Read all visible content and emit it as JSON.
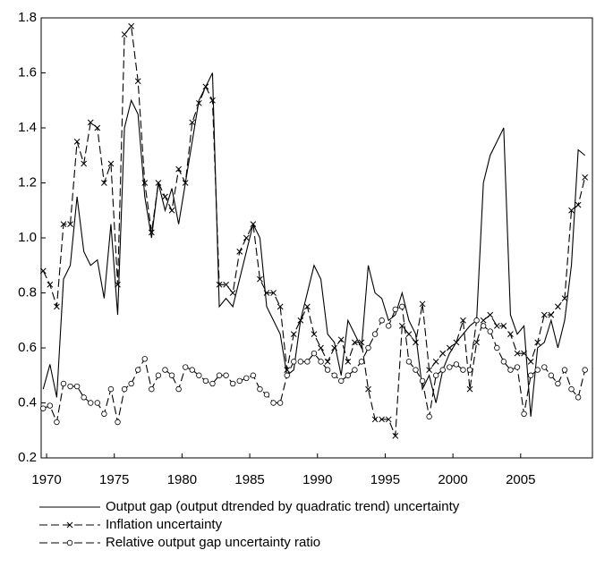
{
  "chart_data": {
    "type": "line",
    "x": [
      1969.75,
      1970.25,
      1970.75,
      1971.25,
      1971.75,
      1972.25,
      1972.75,
      1973.25,
      1973.75,
      1974.25,
      1974.75,
      1975.25,
      1975.75,
      1976.25,
      1976.75,
      1977.25,
      1977.75,
      1978.25,
      1978.75,
      1979.25,
      1979.75,
      1980.25,
      1980.75,
      1981.25,
      1981.75,
      1982.25,
      1982.75,
      1983.25,
      1983.75,
      1984.25,
      1984.75,
      1985.25,
      1985.75,
      1986.25,
      1986.75,
      1987.25,
      1987.75,
      1988.25,
      1988.75,
      1989.25,
      1989.75,
      1990.25,
      1990.75,
      1991.25,
      1991.75,
      1992.25,
      1992.75,
      1993.25,
      1993.75,
      1994.25,
      1994.75,
      1995.25,
      1995.75,
      1996.25,
      1996.75,
      1997.25,
      1997.75,
      1998.25,
      1998.75,
      1999.25,
      1999.75,
      2000.25,
      2000.75,
      2001.25,
      2001.75,
      2002.25,
      2002.75,
      2003.25,
      2003.75,
      2004.25,
      2004.75,
      2005.25,
      2005.75,
      2006.25,
      2006.75,
      2007.25,
      2007.75,
      2008.25,
      2008.75,
      2009.25,
      2009.75
    ],
    "series": [
      {
        "name": "Output gap (output dtrended by quadratic trend) uncertainty",
        "color": "#000000",
        "dash": false,
        "marker": "none",
        "values": [
          0.45,
          0.54,
          0.42,
          0.85,
          0.9,
          1.15,
          0.95,
          0.9,
          0.92,
          0.78,
          1.05,
          0.72,
          1.4,
          1.5,
          1.45,
          1.15,
          1.0,
          1.2,
          1.1,
          1.18,
          1.05,
          1.2,
          1.35,
          1.5,
          1.55,
          1.6,
          0.75,
          0.78,
          0.75,
          0.85,
          0.95,
          1.05,
          1.0,
          0.75,
          0.7,
          0.65,
          0.5,
          0.52,
          0.7,
          0.8,
          0.9,
          0.85,
          0.65,
          0.62,
          0.5,
          0.7,
          0.65,
          0.6,
          0.9,
          0.8,
          0.78,
          0.7,
          0.72,
          0.8,
          0.7,
          0.65,
          0.45,
          0.5,
          0.4,
          0.52,
          0.58,
          0.62,
          0.65,
          0.68,
          0.7,
          1.2,
          1.3,
          1.35,
          1.4,
          0.72,
          0.65,
          0.68,
          0.35,
          0.6,
          0.62,
          0.7,
          0.6,
          0.7,
          0.9,
          1.32,
          1.3
        ]
      },
      {
        "name": "Inflation uncertainty",
        "color": "#000000",
        "dash": true,
        "marker": "x",
        "values": [
          0.88,
          0.83,
          0.75,
          1.05,
          1.05,
          1.35,
          1.27,
          1.42,
          1.4,
          1.2,
          1.27,
          0.83,
          1.74,
          1.77,
          1.57,
          1.2,
          1.02,
          1.2,
          1.15,
          1.1,
          1.25,
          1.2,
          1.42,
          1.49,
          1.55,
          1.5,
          0.83,
          0.83,
          0.8,
          0.95,
          1.0,
          1.05,
          0.85,
          0.8,
          0.8,
          0.75,
          0.52,
          0.65,
          0.7,
          0.75,
          0.65,
          0.6,
          0.55,
          0.6,
          0.63,
          0.55,
          0.62,
          0.62,
          0.45,
          0.34,
          0.34,
          0.34,
          0.28,
          0.68,
          0.65,
          0.62,
          0.76,
          0.52,
          0.55,
          0.58,
          0.6,
          0.62,
          0.7,
          0.45,
          0.62,
          0.7,
          0.72,
          0.68,
          0.68,
          0.65,
          0.58,
          0.58,
          0.55,
          0.62,
          0.72,
          0.72,
          0.75,
          0.78,
          1.1,
          1.12,
          1.22
        ]
      },
      {
        "name": "Relative output gap uncertainty ratio",
        "color": "#000000",
        "dash": true,
        "marker": "circle",
        "values": [
          0.38,
          0.39,
          0.33,
          0.47,
          0.46,
          0.46,
          0.42,
          0.4,
          0.4,
          0.36,
          0.45,
          0.33,
          0.45,
          0.47,
          0.52,
          0.56,
          0.45,
          0.5,
          0.52,
          0.5,
          0.45,
          0.53,
          0.52,
          0.5,
          0.48,
          0.47,
          0.5,
          0.5,
          0.47,
          0.48,
          0.49,
          0.5,
          0.45,
          0.43,
          0.4,
          0.4,
          0.5,
          0.55,
          0.55,
          0.55,
          0.58,
          0.55,
          0.52,
          0.5,
          0.48,
          0.5,
          0.52,
          0.55,
          0.6,
          0.65,
          0.7,
          0.68,
          0.74,
          0.75,
          0.55,
          0.52,
          0.48,
          0.35,
          0.5,
          0.52,
          0.53,
          0.54,
          0.52,
          0.52,
          0.7,
          0.68,
          0.66,
          0.6,
          0.55,
          0.52,
          0.53,
          0.36,
          0.5,
          0.52,
          0.53,
          0.5,
          0.47,
          0.52,
          0.45,
          0.42,
          0.52
        ]
      }
    ],
    "xlim": [
      1969.6,
      2010.3
    ],
    "xticks": [
      1970,
      1975,
      1980,
      1985,
      1990,
      1995,
      2000,
      2005
    ],
    "ylim": [
      0.2,
      1.8
    ],
    "yticks": [
      0.2,
      0.4,
      0.6,
      0.8,
      {
        "value": 1,
        "label": "1.0"
      },
      1.2,
      1.4,
      1.6,
      1.8
    ],
    "grid": false
  }
}
